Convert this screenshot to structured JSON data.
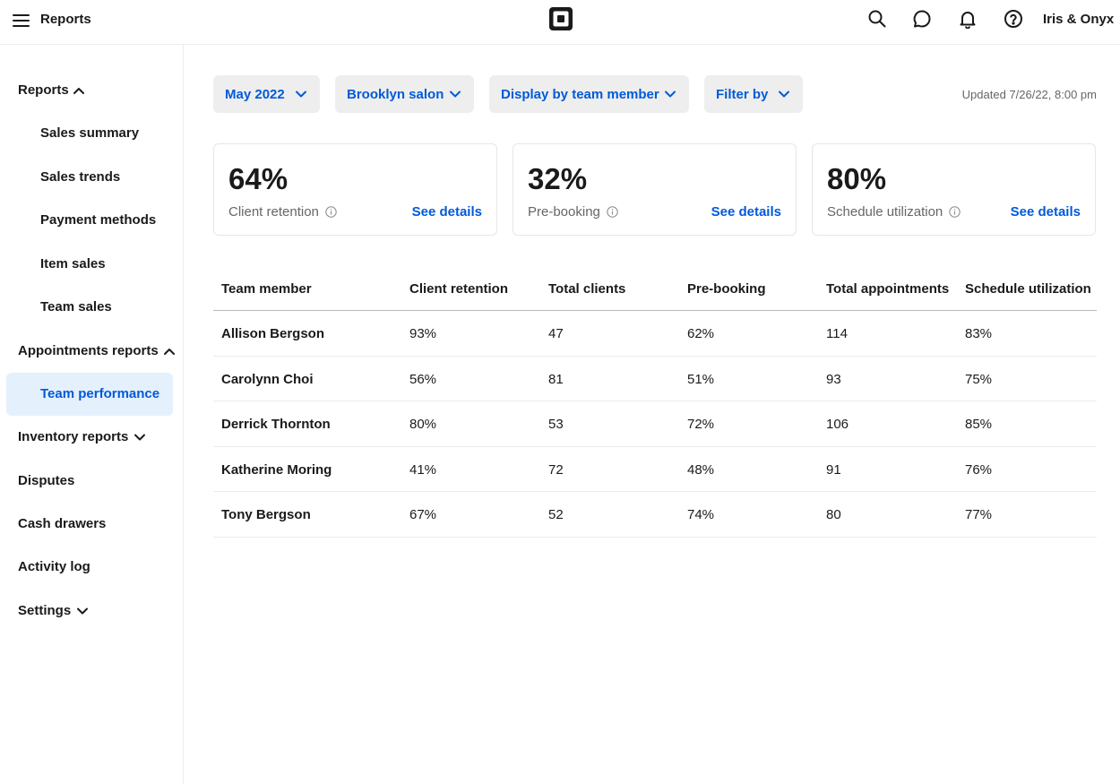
{
  "header": {
    "title": "Reports",
    "user": "Iris & Onyx",
    "icons": [
      "menu-icon",
      "square-logo-icon",
      "search-icon",
      "chat-icon",
      "bell-icon",
      "help-icon"
    ]
  },
  "sidebar": {
    "reports": {
      "label": "Reports"
    },
    "reports_items": [
      {
        "label": "Sales summary"
      },
      {
        "label": "Sales trends"
      },
      {
        "label": "Payment methods"
      },
      {
        "label": "Item sales"
      },
      {
        "label": "Team sales"
      }
    ],
    "appointments": {
      "label": "Appointments reports"
    },
    "team_performance": {
      "label": "Team performance"
    },
    "inventory": {
      "label": "Inventory reports"
    },
    "disputes": {
      "label": "Disputes"
    },
    "cash_drawers": {
      "label": "Cash drawers"
    },
    "activity_log": {
      "label": "Activity log"
    },
    "settings": {
      "label": "Settings"
    }
  },
  "filters": {
    "date": "May 2022",
    "location": "Brooklyn salon",
    "display": "Display by team member",
    "filter": "Filter by",
    "updated": "Updated 7/26/22, 8:00 pm"
  },
  "kpis": [
    {
      "value": "64%",
      "label": "Client retention",
      "link": "See details"
    },
    {
      "value": "32%",
      "label": "Pre-booking",
      "link": "See details"
    },
    {
      "value": "80%",
      "label": "Schedule utilization",
      "link": "See details"
    }
  ],
  "table": {
    "headers": [
      "Team member",
      "Client retention",
      "Total clients",
      "Pre-booking",
      "Total appointments",
      "Schedule utilization"
    ],
    "rows": [
      [
        "Allison Bergson",
        "93%",
        "47",
        "62%",
        "114",
        "83%"
      ],
      [
        "Carolynn Choi",
        "56%",
        "81",
        "51%",
        "93",
        "75%"
      ],
      [
        "Derrick Thornton",
        "80%",
        "53",
        "72%",
        "106",
        "85%"
      ],
      [
        "Katherine Moring",
        "41%",
        "72",
        "48%",
        "91",
        "76%"
      ],
      [
        "Tony Bergson",
        "67%",
        "52",
        "74%",
        "80",
        "77%"
      ]
    ]
  },
  "colors": {
    "accent": "#005ad9",
    "active_bg": "#e5f0fd",
    "filter_bg": "#eeeeee",
    "text": "#1a1a1a",
    "muted": "#666666"
  }
}
